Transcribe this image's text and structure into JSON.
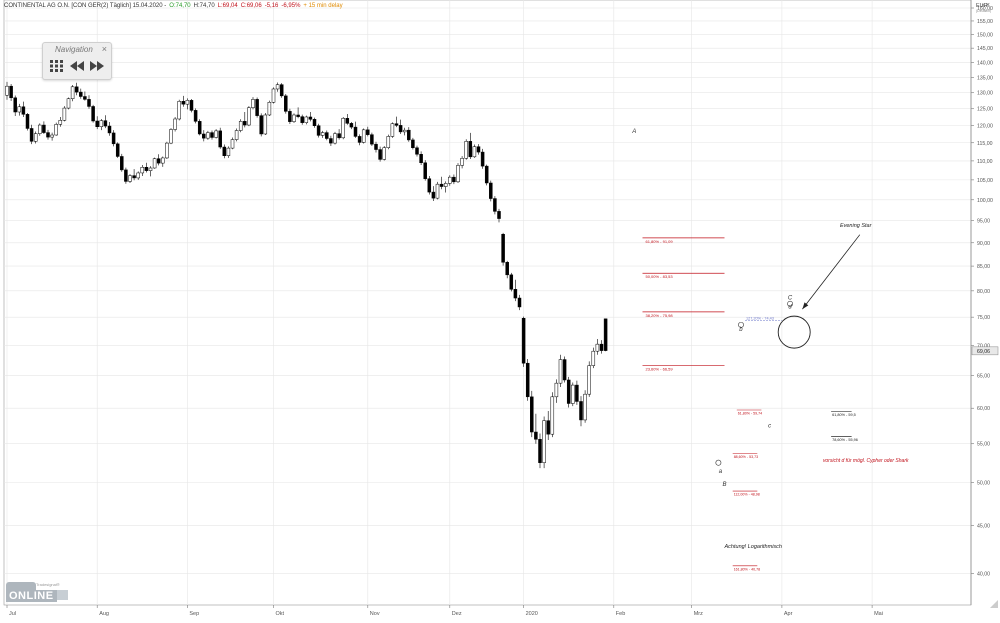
{
  "header": {
    "instrument": "CONTINENTAL AG O.N. [CON GER(2) Täglich] 15.04.2020 -",
    "open": "O:74,70",
    "high": "H:74,70",
    "low": "L:69,04",
    "close": "C:69,06",
    "change": "-5,16",
    "change_pct": "-6,95%",
    "delay": "+ 15 min delay"
  },
  "currency_label": "EUR",
  "currency_sub": "(Deutsch)",
  "navigation": {
    "title": "Navigation",
    "close": "×",
    "grid_icon": "grid-icon",
    "back_icon": "rewind-icon",
    "forward_icon": "fast-forward-icon"
  },
  "logo": {
    "small": "Tradesignal®",
    "word": "ONLINE"
  },
  "colors": {
    "up": "#ffffff",
    "down": "#000000",
    "fib_line": "#c0111a",
    "fib_text": "#c0111a",
    "grid": "#e6e6e6",
    "header_open": "#2a9d2a",
    "header_high": "#333333",
    "header_low": "#c0111a",
    "header_close": "#c0111a",
    "header_delay": "#e08a00",
    "price_box": "#e8e8e8",
    "blue_text": "#6b75c9"
  },
  "chart_data": {
    "type": "candlestick",
    "title": "CONTINENTAL AG O.N. [CON GER(2) Täglich]",
    "y_scale": "log",
    "ylim": [
      37.5,
      160
    ],
    "grid": true,
    "y_ticks": [
      160,
      155,
      150,
      145,
      140,
      135,
      130,
      125,
      120,
      115,
      110,
      105,
      100,
      95,
      90,
      85,
      80,
      75,
      70,
      65,
      60,
      55,
      50,
      45,
      40
    ],
    "x_ticks": [
      {
        "label": "Jul",
        "index": 0
      },
      {
        "label": "Aug",
        "index": 22
      },
      {
        "label": "Sep",
        "index": 44
      },
      {
        "label": "Okt",
        "index": 65
      },
      {
        "label": "Nov",
        "index": 88
      },
      {
        "label": "Dez",
        "index": 108
      },
      {
        "label": "2020",
        "index": 126
      },
      {
        "label": "Feb",
        "index": 148
      },
      {
        "label": "Mrz",
        "index": 167
      },
      {
        "label": "Apr",
        "index": 189
      },
      {
        "label": "Mai",
        "index": 211
      }
    ],
    "last_price": "69,06",
    "candles": [
      [
        129.2,
        133.5,
        127.8,
        132.1
      ],
      [
        132.1,
        132.8,
        127.4,
        128.4
      ],
      [
        128.4,
        129.1,
        122.8,
        124.0
      ],
      [
        124.0,
        126.5,
        122.9,
        125.6
      ],
      [
        125.6,
        127.2,
        122.5,
        123.3
      ],
      [
        123.3,
        123.7,
        118.5,
        119.1
      ],
      [
        119.1,
        120.2,
        114.6,
        115.4
      ],
      [
        115.4,
        118.2,
        114.8,
        117.6
      ],
      [
        117.6,
        120.6,
        117.0,
        120.1
      ],
      [
        120.1,
        121.2,
        117.5,
        117.9
      ],
      [
        117.9,
        118.7,
        115.9,
        116.6
      ],
      [
        116.6,
        117.9,
        115.6,
        117.2
      ],
      [
        117.2,
        120.8,
        117.0,
        120.3
      ],
      [
        120.3,
        122.5,
        119.6,
        121.5
      ],
      [
        121.5,
        125.8,
        121.2,
        125.2
      ],
      [
        125.2,
        128.5,
        124.8,
        128.1
      ],
      [
        128.1,
        132.5,
        127.3,
        131.9
      ],
      [
        131.9,
        133.2,
        129.2,
        130.2
      ],
      [
        130.2,
        131.3,
        128.1,
        128.8
      ],
      [
        128.8,
        130.4,
        127.5,
        127.9
      ],
      [
        127.9,
        129.2,
        125.0,
        125.7
      ],
      [
        125.7,
        126.2,
        120.8,
        121.3
      ],
      [
        121.3,
        122.7,
        118.9,
        119.6
      ],
      [
        119.6,
        121.9,
        118.6,
        121.4
      ],
      [
        121.4,
        123.0,
        119.2,
        119.8
      ],
      [
        119.8,
        121.0,
        117.0,
        117.8
      ],
      [
        117.8,
        118.6,
        114.0,
        114.7
      ],
      [
        114.7,
        115.1,
        110.8,
        111.2
      ],
      [
        111.2,
        111.9,
        107.1,
        107.6
      ],
      [
        107.6,
        108.2,
        104.0,
        104.6
      ],
      [
        104.6,
        106.5,
        104.2,
        106.1
      ],
      [
        106.1,
        107.8,
        104.9,
        105.5
      ],
      [
        105.5,
        107.2,
        105.0,
        106.8
      ],
      [
        106.8,
        108.9,
        106.0,
        108.3
      ],
      [
        108.3,
        109.5,
        106.9,
        107.4
      ],
      [
        107.4,
        108.6,
        105.9,
        108.1
      ],
      [
        108.1,
        110.9,
        107.9,
        110.6
      ],
      [
        110.6,
        111.8,
        108.8,
        109.4
      ],
      [
        109.4,
        111.2,
        108.4,
        110.8
      ],
      [
        110.8,
        115.3,
        110.5,
        114.9
      ],
      [
        114.9,
        119.2,
        114.6,
        118.8
      ],
      [
        118.8,
        122.5,
        118.2,
        121.9
      ],
      [
        121.9,
        127.8,
        121.5,
        127.3
      ],
      [
        127.3,
        129.0,
        125.6,
        126.4
      ],
      [
        126.4,
        128.2,
        124.8,
        127.6
      ],
      [
        127.6,
        128.0,
        123.9,
        124.5
      ],
      [
        124.5,
        125.1,
        120.6,
        121.2
      ],
      [
        121.2,
        121.8,
        117.1,
        117.5
      ],
      [
        117.5,
        118.6,
        115.4,
        116.3
      ],
      [
        116.3,
        118.4,
        115.8,
        117.9
      ],
      [
        117.9,
        118.5,
        115.9,
        116.5
      ],
      [
        116.5,
        118.9,
        116.2,
        118.4
      ],
      [
        118.4,
        119.3,
        113.3,
        113.8
      ],
      [
        113.8,
        114.5,
        110.7,
        111.4
      ],
      [
        111.4,
        114.0,
        110.8,
        113.5
      ],
      [
        113.5,
        116.5,
        113.2,
        115.9
      ],
      [
        115.9,
        119.1,
        115.4,
        118.5
      ],
      [
        118.5,
        121.8,
        118.0,
        121.2
      ],
      [
        121.2,
        124.0,
        119.4,
        120.1
      ],
      [
        120.1,
        125.8,
        119.8,
        125.3
      ],
      [
        125.3,
        128.6,
        124.8,
        127.9
      ],
      [
        127.9,
        128.5,
        122.3,
        122.9
      ],
      [
        122.9,
        123.6,
        116.8,
        117.5
      ],
      [
        117.5,
        123.7,
        117.2,
        123.1
      ],
      [
        123.1,
        127.5,
        122.8,
        127.0
      ],
      [
        127.0,
        131.7,
        126.6,
        131.2
      ],
      [
        131.2,
        133.3,
        130.3,
        132.6
      ],
      [
        132.6,
        133.1,
        128.4,
        129.0
      ],
      [
        129.0,
        129.6,
        123.5,
        124.2
      ],
      [
        124.2,
        125.0,
        120.4,
        121.1
      ],
      [
        121.1,
        123.6,
        120.7,
        123.1
      ],
      [
        123.1,
        125.4,
        122.1,
        122.6
      ],
      [
        122.6,
        123.2,
        120.2,
        120.8
      ],
      [
        120.8,
        122.9,
        120.3,
        122.5
      ],
      [
        122.5,
        124.0,
        121.2,
        121.8
      ],
      [
        121.8,
        122.3,
        119.3,
        119.9
      ],
      [
        119.9,
        120.5,
        116.5,
        117.1
      ],
      [
        117.1,
        118.4,
        116.4,
        117.9
      ],
      [
        117.9,
        118.5,
        115.7,
        116.2
      ],
      [
        116.2,
        117.0,
        114.1,
        114.9
      ],
      [
        114.9,
        118.1,
        114.5,
        117.6
      ],
      [
        117.6,
        118.9,
        115.9,
        116.4
      ],
      [
        116.4,
        122.5,
        116.0,
        122.1
      ],
      [
        122.1,
        123.4,
        120.2,
        120.6
      ],
      [
        120.6,
        121.0,
        118.9,
        119.5
      ],
      [
        119.5,
        121.1,
        116.4,
        116.8
      ],
      [
        116.8,
        117.4,
        114.3,
        115.1
      ],
      [
        115.1,
        119.1,
        114.8,
        118.7
      ],
      [
        118.7,
        119.6,
        116.8,
        117.3
      ],
      [
        117.3,
        117.9,
        114.1,
        114.6
      ],
      [
        114.6,
        115.3,
        112.3,
        113.1
      ],
      [
        113.1,
        113.9,
        109.8,
        110.4
      ],
      [
        110.4,
        114.1,
        110.1,
        113.6
      ],
      [
        113.6,
        117.3,
        113.2,
        116.8
      ],
      [
        116.8,
        120.9,
        116.4,
        120.5
      ],
      [
        120.5,
        122.6,
        119.5,
        120.0
      ],
      [
        120.0,
        121.7,
        117.5,
        118.1
      ],
      [
        118.1,
        119.3,
        117.1,
        118.6
      ],
      [
        118.6,
        119.5,
        115.3,
        115.8
      ],
      [
        115.8,
        116.4,
        113.1,
        113.6
      ],
      [
        113.6,
        114.2,
        111.2,
        111.8
      ],
      [
        111.8,
        112.6,
        108.9,
        109.5
      ],
      [
        109.5,
        110.2,
        104.8,
        105.3
      ],
      [
        105.3,
        106.0,
        101.3,
        101.9
      ],
      [
        101.9,
        103.4,
        99.7,
        100.4
      ],
      [
        100.4,
        104.5,
        100.1,
        103.9
      ],
      [
        103.9,
        105.8,
        102.6,
        103.3
      ],
      [
        103.3,
        104.6,
        101.8,
        104.1
      ],
      [
        104.1,
        106.2,
        103.5,
        105.7
      ],
      [
        105.7,
        106.4,
        103.9,
        104.5
      ],
      [
        104.5,
        109.4,
        104.2,
        108.8
      ],
      [
        108.8,
        111.3,
        108.0,
        110.7
      ],
      [
        110.7,
        116.0,
        110.3,
        115.4
      ],
      [
        115.4,
        117.8,
        110.5,
        111.1
      ],
      [
        111.1,
        114.5,
        110.8,
        113.9
      ],
      [
        113.9,
        114.6,
        111.7,
        112.4
      ],
      [
        112.4,
        113.3,
        107.9,
        108.6
      ],
      [
        108.6,
        109.0,
        103.6,
        104.2
      ],
      [
        104.2,
        104.8,
        99.6,
        100.3
      ],
      [
        100.3,
        100.9,
        96.5,
        97.2
      ],
      [
        97.2,
        97.8,
        94.6,
        95.5
      ],
      [
        91.9,
        92.2,
        85.1,
        85.8
      ],
      [
        85.8,
        86.1,
        82.5,
        83.2
      ],
      [
        83.2,
        83.6,
        79.9,
        80.3
      ],
      [
        80.3,
        82.2,
        78.0,
        78.6
      ],
      [
        78.6,
        79.2,
        76.3,
        76.9
      ],
      [
        74.8,
        75.1,
        66.4,
        67.0
      ],
      [
        67.0,
        67.7,
        61.1,
        61.7
      ],
      [
        61.7,
        62.6,
        55.9,
        56.6
      ],
      [
        56.6,
        59.2,
        55.0,
        55.6
      ],
      [
        55.6,
        56.4,
        51.8,
        52.5
      ],
      [
        52.5,
        58.8,
        51.8,
        58.2
      ],
      [
        58.2,
        59.6,
        55.5,
        56.3
      ],
      [
        56.3,
        62.4,
        55.9,
        61.7
      ],
      [
        61.7,
        64.4,
        60.8,
        63.8
      ],
      [
        63.8,
        68.4,
        63.2,
        67.6
      ],
      [
        67.6,
        68.1,
        63.9,
        64.3
      ],
      [
        64.3,
        64.8,
        60.1,
        60.7
      ],
      [
        60.7,
        63.9,
        60.3,
        63.5
      ],
      [
        63.5,
        64.2,
        60.5,
        61.0
      ],
      [
        61.0,
        61.8,
        57.4,
        58.3
      ],
      [
        58.3,
        62.7,
        57.9,
        62.1
      ],
      [
        62.1,
        67.3,
        61.7,
        66.6
      ],
      [
        66.6,
        69.6,
        66.2,
        69.0
      ],
      [
        69.0,
        71.1,
        68.4,
        70.2
      ],
      [
        70.2,
        70.9,
        68.6,
        69.1
      ],
      [
        74.7,
        74.7,
        69.0,
        69.1
      ]
    ],
    "fib_levels": [
      {
        "label": "61,80% - 91,09",
        "price": 91.09,
        "i0": 155,
        "i1": 175
      },
      {
        "label": "50,00% - 83,53",
        "price": 83.53,
        "i0": 155,
        "i1": 175
      },
      {
        "label": "38,20% - 75,98",
        "price": 75.98,
        "i0": 155,
        "i1": 175
      },
      {
        "label": "23,60% - 66,59",
        "price": 66.59,
        "i0": 155,
        "i1": 175
      }
    ],
    "small_levels": [
      {
        "label": "61,80% - 59,74",
        "price": 59.74,
        "i0": 178,
        "i1": 184
      },
      {
        "label": "88,60% - 53,73",
        "price": 53.73,
        "i0": 177,
        "i1": 183
      },
      {
        "label": "112,00% - 48,98",
        "price": 48.98,
        "i0": 177,
        "i1": 183
      },
      {
        "label": "161,80% - 40,78",
        "price": 40.78,
        "i0": 177,
        "i1": 183
      }
    ],
    "right_levels": [
      {
        "label": "61,80% - 59,5",
        "price": 59.5,
        "i0": 201,
        "i1": 206
      },
      {
        "label": "78,60% - 55,96",
        "price": 55.96,
        "i0": 201,
        "i1": 206
      }
    ],
    "ab_label": {
      "text": "127,20% - 74,43",
      "price": 74.43,
      "i0": 180,
      "i1": 189
    },
    "points": [
      {
        "label": "A",
        "index": 153,
        "price": 117.8
      },
      {
        "label": "B",
        "index": 175,
        "price": 49.6
      },
      {
        "label": "a",
        "index": 174,
        "price": 51.2
      },
      {
        "label": "b",
        "index": 179,
        "price": 72.5
      },
      {
        "label": "c",
        "index": 186,
        "price": 57.2
      },
      {
        "label": "C",
        "index": 191,
        "price": 78.3
      },
      {
        "label": "d",
        "index": 191,
        "price": 76.6
      }
    ],
    "annotations": [
      {
        "text": "Evening Star",
        "index": 207,
        "price": 93.5,
        "anchor": "middle"
      },
      {
        "text": "vorsicht d für mögl. Cypher oder Shark",
        "index": 199,
        "price": 52.6,
        "anchor": "start"
      },
      {
        "text": "Achtung! Logarithmisch",
        "index": 175,
        "price": 42.6,
        "anchor": "start"
      }
    ],
    "circle": {
      "index": 192,
      "price": 72.3
    },
    "arrow": {
      "from_index": 208,
      "from_price": 91.8,
      "to_index": 194,
      "to_price": 76.5
    }
  }
}
